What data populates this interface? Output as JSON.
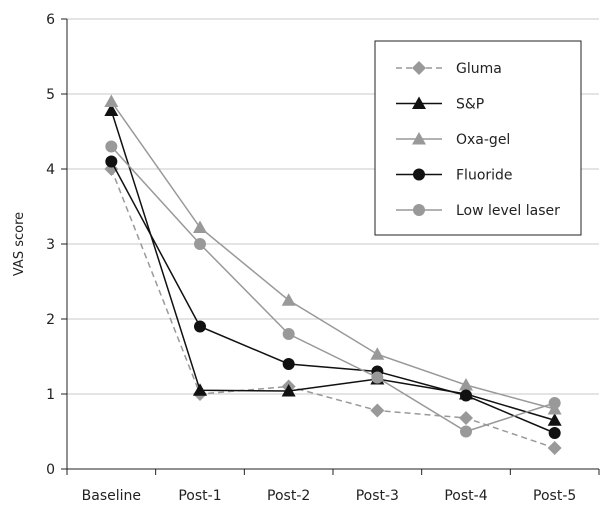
{
  "chart_data": {
    "type": "line",
    "title": "",
    "xlabel": "",
    "ylabel": "VAS score",
    "categories": [
      "Baseline",
      "Post-1",
      "Post-2",
      "Post-3",
      "Post-4",
      "Post-5"
    ],
    "ylim": [
      0,
      6
    ],
    "yticks": [
      "0",
      "1",
      "2",
      "3",
      "4",
      "5",
      "6"
    ],
    "grid": "horizontal",
    "legend_position": "top-right",
    "series": [
      {
        "name": "Gluma",
        "values": [
          4.0,
          1.0,
          1.1,
          0.78,
          0.68,
          0.28
        ],
        "color": "#999999",
        "marker": "diamond",
        "dash": true
      },
      {
        "name": "S&P",
        "values": [
          4.78,
          1.05,
          1.04,
          1.2,
          1.0,
          0.65
        ],
        "color": "#111111",
        "marker": "triangle",
        "dash": false
      },
      {
        "name": "Oxa-gel",
        "values": [
          4.9,
          3.22,
          2.25,
          1.53,
          1.12,
          0.8
        ],
        "color": "#999999",
        "marker": "triangle",
        "dash": false
      },
      {
        "name": "Fluoride",
        "values": [
          4.1,
          1.9,
          1.4,
          1.3,
          0.98,
          0.48
        ],
        "color": "#111111",
        "marker": "circle",
        "dash": false
      },
      {
        "name": "Low level laser",
        "values": [
          4.3,
          3.0,
          1.8,
          1.22,
          0.5,
          0.88
        ],
        "color": "#999999",
        "marker": "circle",
        "dash": false
      }
    ]
  }
}
